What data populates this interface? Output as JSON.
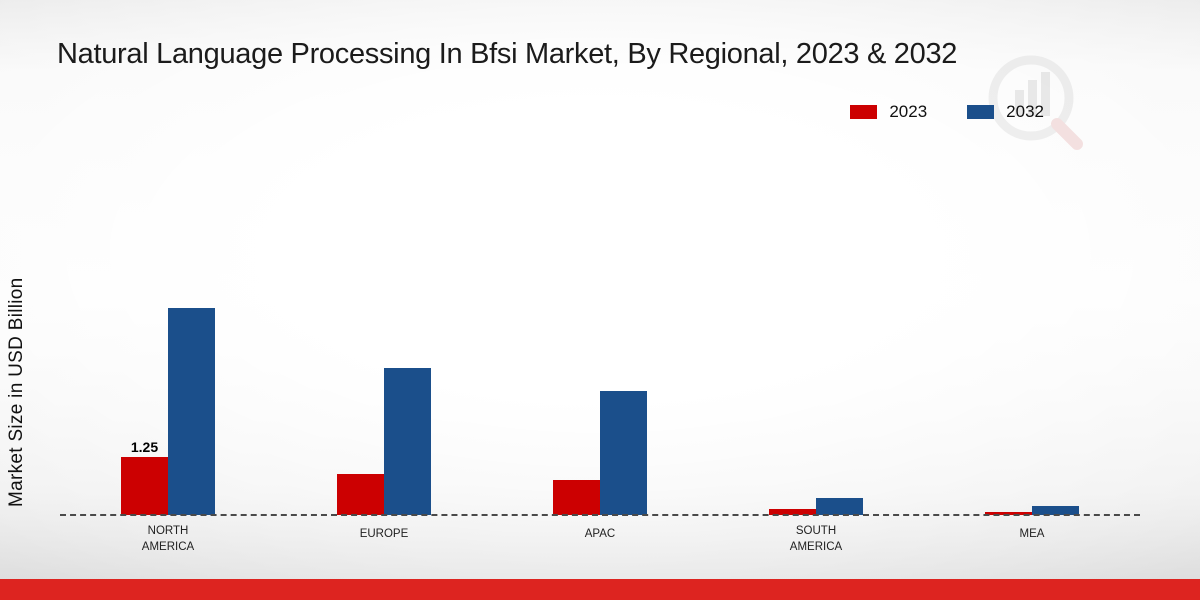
{
  "chart_data": {
    "type": "bar",
    "title": "Natural Language Processing In Bfsi Market, By Regional, 2023 & 2032",
    "xlabel": "",
    "ylabel": "Market Size in USD Billion",
    "categories": [
      "NORTH AMERICA",
      "EUROPE",
      "APAC",
      "SOUTH AMERICA",
      "MEA"
    ],
    "series": [
      {
        "name": "2023",
        "color": "#cc0001",
        "values": [
          1.25,
          0.9,
          0.75,
          0.12,
          0.06
        ]
      },
      {
        "name": "2032",
        "color": "#1b4f8b",
        "values": [
          4.5,
          3.2,
          2.7,
          0.36,
          0.2
        ]
      }
    ],
    "bar_labels": [
      {
        "series": 0,
        "category": 0,
        "text": "1.25"
      }
    ],
    "ylim": [
      0,
      5
    ],
    "grid": "off",
    "legend_position": "top-right",
    "baseline_style": "dashed"
  },
  "colors": {
    "footer_bar": "#dd2420",
    "series_2023": "#cc0001",
    "series_2032": "#1b4f8b"
  }
}
